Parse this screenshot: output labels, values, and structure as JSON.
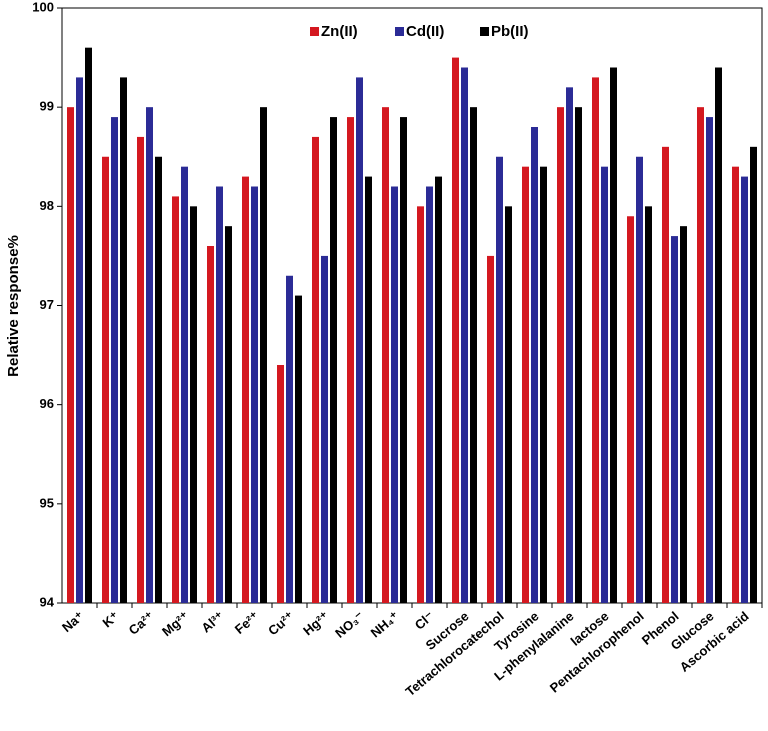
{
  "chart_data": {
    "type": "bar",
    "y_label": "Relative response%",
    "categories": [
      "Na⁺",
      "K⁺",
      "Ca²⁺",
      "Mg²⁺",
      "Al³⁺",
      "Fe²⁺",
      "Cu²⁺",
      "Hg²⁺",
      "NO₃⁻",
      "NH₄⁺",
      "Cl⁻",
      "Sucrose",
      "Tetrachlorocatechol",
      "Tyrosine",
      "L-phenylalanine",
      "lactose",
      "Pentachlorophenol",
      "Phenol",
      "Glucose",
      "Ascorbic acid"
    ],
    "series": [
      {
        "name": "Zn(II)",
        "color": "#d41820",
        "values": [
          99.0,
          98.5,
          98.7,
          98.1,
          97.6,
          98.3,
          96.4,
          98.7,
          98.9,
          99.0,
          98.0,
          99.5,
          97.5,
          98.4,
          99.0,
          99.3,
          97.9,
          98.6,
          99.0,
          98.4
        ]
      },
      {
        "name": "Cd(II)",
        "color": "#2b2b96",
        "values": [
          99.3,
          98.9,
          99.0,
          98.4,
          98.2,
          98.2,
          97.3,
          97.5,
          99.3,
          98.2,
          98.2,
          99.4,
          98.5,
          98.8,
          99.2,
          98.4,
          98.5,
          97.7,
          98.9,
          98.3
        ]
      },
      {
        "name": "Pb(II)",
        "color": "#000000",
        "values": [
          99.6,
          99.3,
          98.5,
          98.0,
          97.8,
          99.0,
          97.1,
          98.9,
          98.3,
          98.9,
          98.3,
          99.0,
          98.0,
          98.4,
          99.0,
          99.4,
          98.0,
          97.8,
          99.4,
          98.6
        ]
      }
    ],
    "ylim": [
      94,
      100
    ],
    "yticks": [
      94,
      95,
      96,
      97,
      98,
      99,
      100
    ],
    "legend": "top"
  }
}
